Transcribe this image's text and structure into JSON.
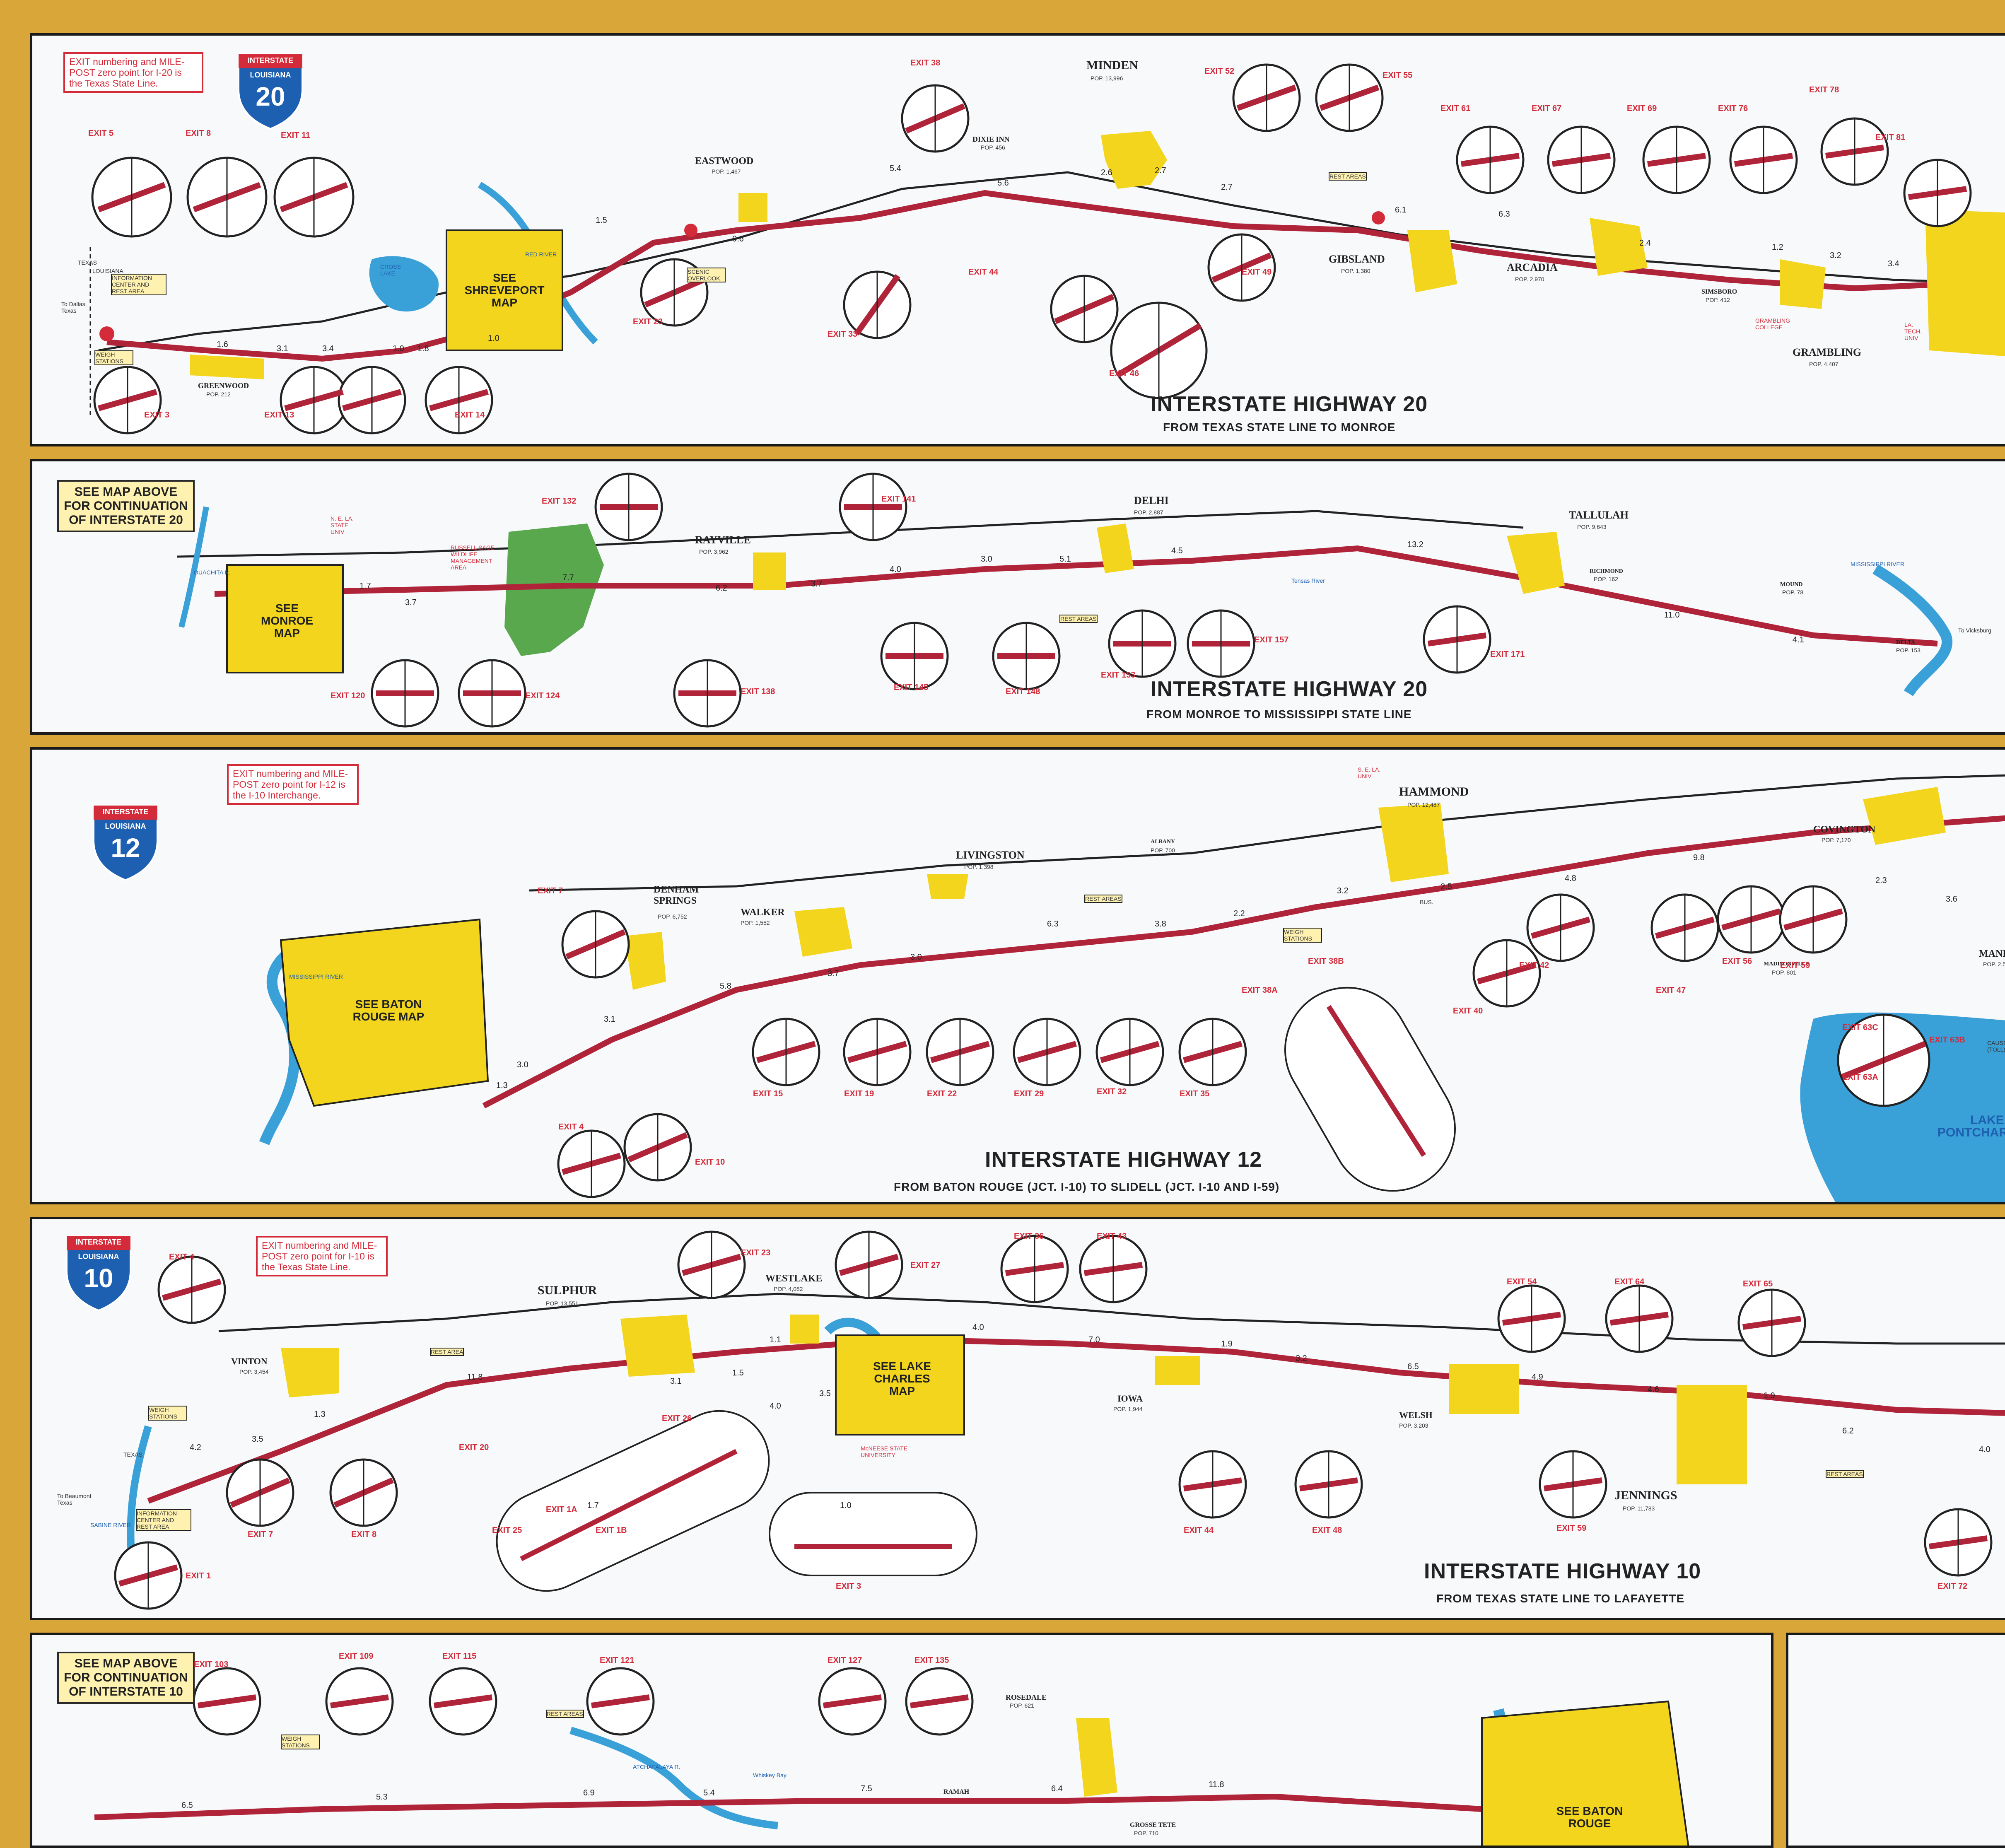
{
  "colors": {
    "border_gold": "#d9a63a",
    "interstate_red": "#b0243a",
    "city_yellow": "#f2d51c",
    "water_blue": "#3aa0d8",
    "land_green": "#5aa84e",
    "text_red": "#d42b3a"
  },
  "panel1": {
    "note": "EXIT numbering and MILE-POST zero point for I-20 is the Texas State Line.",
    "shield_top": "INTERSTATE",
    "shield_state": "LOUISIANA",
    "shield_number": "20",
    "title": "INTERSTATE HIGHWAY 20",
    "subtitle": "FROM TEXAS STATE LINE TO MONROE",
    "cities": [
      {
        "name": "MINDEN",
        "pop": "POP. 13,996"
      },
      {
        "name": "EASTWOOD",
        "pop": "POP. 1,467"
      },
      {
        "name": "DIXIE INN",
        "pop": "POP. 456"
      },
      {
        "name": "GIBSLAND",
        "pop": "POP. 1,380"
      },
      {
        "name": "ARCADIA",
        "pop": "POP. 2,970"
      },
      {
        "name": "GREENWOOD",
        "pop": "POP. 212"
      },
      {
        "name": "GRAMBLING",
        "pop": "POP. 4,407"
      },
      {
        "name": "SIMSBORO",
        "pop": "POP. 412"
      }
    ],
    "exits": [
      "EXIT 5",
      "EXIT 8",
      "EXIT 11",
      "EXIT 38",
      "EXIT 52",
      "EXIT 55",
      "EXIT 61",
      "EXIT 67",
      "EXIT 69",
      "EXIT 76",
      "EXIT 78",
      "EXIT 81",
      "EXIT 3",
      "EXIT 13",
      "EXIT 14",
      "EXIT 23",
      "EXIT 33",
      "EXIT 44",
      "EXIT 46",
      "EXIT 49"
    ],
    "mileages": [
      "1.6",
      "3.1",
      "3.4",
      "1.0",
      "1.8",
      "1.5",
      "9.6",
      "5.4",
      "5.6",
      "2.6",
      "2.7",
      "2.7",
      "6.1",
      "6.3",
      "2.4",
      "3.2",
      "3.4",
      "1.0",
      "1.2"
    ],
    "shreveport": "SEE SHREVEPORT MAP",
    "misc": [
      "To Dallas, Texas",
      "INFORMATION CENTER AND REST AREA",
      "WEIGH STATIONS",
      "REST AREAS",
      "SCENIC OVERLOOK",
      "GRAMBLING COLLEGE",
      "LA. TECH. UNIV",
      "CROSS LAKE",
      "RED RIVER",
      "TEXAS",
      "LOUISIANA"
    ]
  },
  "panel2": {
    "note": "SEE MAP ABOVE FOR CONTINUATION OF INTERSTATE 20",
    "title": "INTERSTATE HIGHWAY 20",
    "subtitle": "FROM MONROE TO MISSISSIPPI STATE LINE",
    "cities": [
      {
        "name": "RAYVILLE",
        "pop": "POP. 3,962"
      },
      {
        "name": "DELHI",
        "pop": "POP. 2,887"
      },
      {
        "name": "TALLULAH",
        "pop": "POP. 9,643"
      },
      {
        "name": "RICHMOND",
        "pop": "POP. 162"
      },
      {
        "name": "MOUND",
        "pop": "POP. 78"
      },
      {
        "name": "DELTA",
        "pop": "POP. 153"
      }
    ],
    "exits": [
      "EXIT 132",
      "EXIT 141",
      "EXIT 120",
      "EXIT 124",
      "EXIT 138",
      "EXIT 145",
      "EXIT 148",
      "EXIT 153",
      "EXIT 157",
      "EXIT 171"
    ],
    "mileages": [
      "1.7",
      "3.7",
      "7.7",
      "6.2",
      "3.7",
      "4.0",
      "3.0",
      "5.1",
      "4.5",
      "13.2",
      "11.0",
      "4.1"
    ],
    "monroe": "SEE MONROE MAP",
    "misc": [
      "N. E. LA. STATE UNIV",
      "RUSSELL SAGE WILDLIFE MANAGEMENT AREA",
      "MISSISSIPPI RIVER",
      "To Vicksburg",
      "OUACHITA R.",
      "Tensas River",
      "REST AREAS"
    ]
  },
  "panel3": {
    "note": "EXIT numbering and MILE-POST zero point for I-12 is the I-10 Interchange.",
    "shield_top": "INTERSTATE",
    "shield_state": "LOUISIANA",
    "shield_number": "12",
    "title": "INTERSTATE HIGHWAY 12",
    "subtitle": "FROM BATON ROUGE (JCT. I-10) TO SLIDELL (JCT. I-10 AND I-59)",
    "cities": [
      {
        "name": "HAMMOND",
        "pop": "POP. 12,487"
      },
      {
        "name": "LIVINGSTON",
        "pop": "POP. 1,398"
      },
      {
        "name": "DENHAM SPRINGS",
        "pop": "POP. 6,752"
      },
      {
        "name": "WALKER",
        "pop": "POP. 1,552"
      },
      {
        "name": "ALBANY",
        "pop": "POP. 700"
      },
      {
        "name": "COVINGTON",
        "pop": "POP. 7,170"
      },
      {
        "name": "MADISONVILLE",
        "pop": "POP. 801"
      },
      {
        "name": "MANDEVILLE",
        "pop": "POP. 2,571"
      }
    ],
    "exits": [
      "EXIT 7",
      "EXIT 4",
      "EXIT 10",
      "EXIT 15",
      "EXIT 19",
      "EXIT 22",
      "EXIT 29",
      "EXIT 32",
      "EXIT 35",
      "EXIT 38A",
      "EXIT 38B",
      "EXIT 40",
      "EXIT 42",
      "EXIT 47",
      "EXIT 56",
      "EXIT 59",
      "EXIT 63C",
      "EXIT 63B",
      "EXIT 63A"
    ],
    "mileages": [
      "1.3",
      "3.0",
      "3.1",
      "5.8",
      "3.7",
      "3.0",
      "6.3",
      "3.8",
      "2.2",
      "3.2",
      "2.5",
      "4.8",
      "9.8",
      "2.3",
      "3.6"
    ],
    "baton_rouge": "SEE BATON ROUGE MAP",
    "misc": [
      "S. E. LA. UNIV",
      "WEIGH STATIONS",
      "REST AREAS",
      "LAKE PONTCHARTRAIN",
      "MISSISSIPPI RIVER",
      "BUS.",
      "CAUSEWAY (TOLL)"
    ]
  },
  "panel4": {
    "note": "EXIT numbering and MILE-POST zero point for I-10 is the Texas State Line.",
    "shield_top": "INTERSTATE",
    "shield_state": "LOUISIANA",
    "shield_number": "10",
    "title": "INTERSTATE HIGHWAY 10",
    "subtitle": "FROM TEXAS STATE LINE TO LAFAYETTE",
    "cities": [
      {
        "name": "SULPHUR",
        "pop": "POP. 13,551"
      },
      {
        "name": "WESTLAKE",
        "pop": "POP. 4,082"
      },
      {
        "name": "VINTON",
        "pop": "POP. 3,454"
      },
      {
        "name": "IOWA",
        "pop": "POP. 1,944"
      },
      {
        "name": "WELSH",
        "pop": "POP. 3,203"
      },
      {
        "name": "JENNINGS",
        "pop": "POP. 11,783"
      }
    ],
    "exits": [
      "EXIT 4",
      "EXIT 23",
      "EXIT 27",
      "EXIT 36",
      "EXIT 43",
      "EXIT 54",
      "EXIT 64",
      "EXIT 65",
      "EXIT 20",
      "EXIT 26",
      "EXIT 7",
      "EXIT 8",
      "EXIT 1",
      "EXIT 1A",
      "EXIT 25",
      "EXIT 1B",
      "EXIT 3",
      "EXIT 44",
      "EXIT 48",
      "EXIT 59",
      "EXIT 72"
    ],
    "mileages": [
      "4.2",
      "3.5",
      "1.3",
      "11.8",
      "1.1",
      "3.1",
      "1.5",
      "4.0",
      "3.5",
      "7.0",
      "1.9",
      "3.2",
      "6.5",
      "4.9",
      "4.6",
      "1.9",
      "6.2",
      "4.0",
      "1.0",
      "1.7",
      "4.0"
    ],
    "lake_charles": "SEE LAKE CHARLES MAP",
    "misc": [
      "To Beaumont Texas",
      "INFORMATION CENTER AND REST AREA",
      "WEIGH STATIONS",
      "REST AREA",
      "REST AREAS",
      "McNEESE STATE UNIVERSITY",
      "SABINE RIVER",
      "TEXAS"
    ]
  },
  "panel5": {
    "note": "SEE MAP ABOVE FOR CONTINUATION OF INTERSTATE 10",
    "cities": [
      {
        "name": "ROSEDALE",
        "pop": "POP. 621"
      },
      {
        "name": "RAMAH",
        "pop": ""
      },
      {
        "name": "GROSSE TETE",
        "pop": "POP. 710"
      }
    ],
    "exits": [
      "EXIT 103",
      "EXIT 109",
      "EXIT 115",
      "EXIT 121",
      "EXIT 127",
      "EXIT 135"
    ],
    "mileages": [
      "6.5",
      "5.3",
      "6.9",
      "5.4",
      "7.5",
      "6.4",
      "11.8"
    ],
    "baton_rouge": "SEE BATON ROUGE",
    "misc": [
      "WEIGH STATIONS",
      "REST AREAS",
      "ATCHAFALAYA R.",
      "Whiskey Bay"
    ]
  }
}
